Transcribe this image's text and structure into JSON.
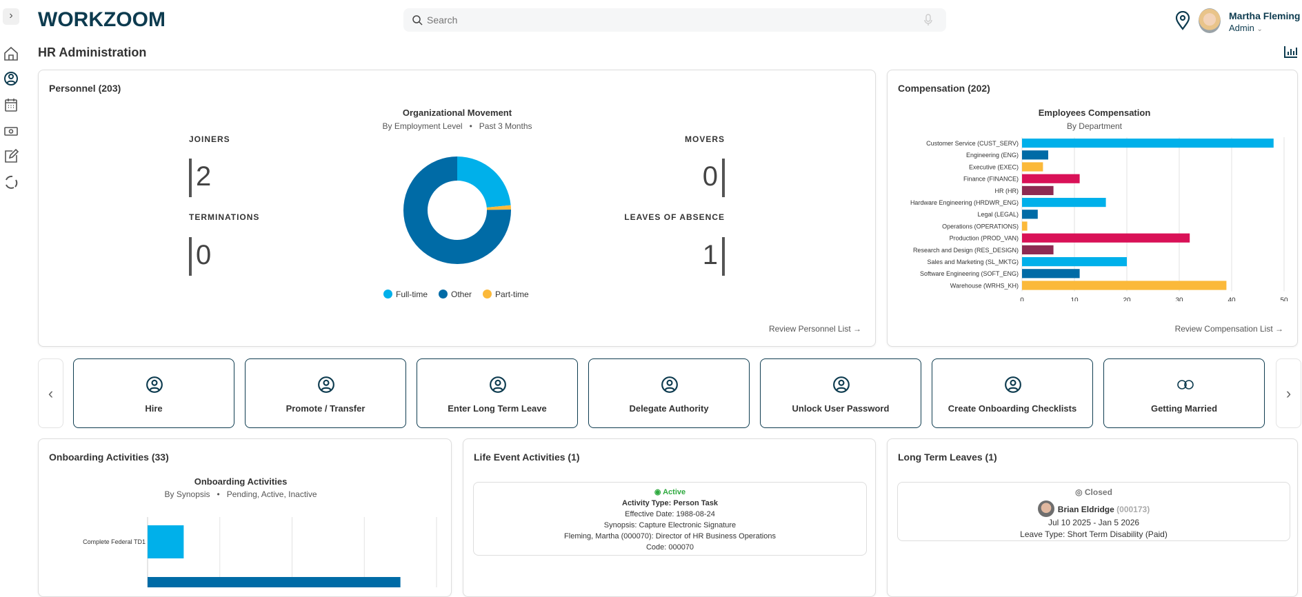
{
  "app": {
    "logo": "WORKZOOM",
    "search_placeholder": "Search",
    "user_name": "Martha Fleming",
    "user_role": "Admin"
  },
  "page_title": "HR Administration",
  "colors": {
    "navy": "#0d3b4f",
    "cyan": "#00b0ea",
    "blue": "#006ba6",
    "yellow": "#fbb93a",
    "pink": "#d91157",
    "maroon": "#8e2a52",
    "active_green": "#2eaa3f"
  },
  "sidebar": {
    "items": [
      {
        "icon": "home-icon"
      },
      {
        "icon": "person-circle-icon"
      },
      {
        "icon": "calendar-icon"
      },
      {
        "icon": "money-icon"
      },
      {
        "icon": "edit-icon"
      },
      {
        "icon": "workzoom-swirl-icon"
      }
    ]
  },
  "personnel": {
    "title": "Personnel (203)",
    "joiners_label": "JOINERS",
    "joiners": "2",
    "terminations_label": "TERMINATIONS",
    "terminations": "0",
    "movers_label": "MOVERS",
    "movers": "0",
    "leaves_label": "LEAVES OF ABSENCE",
    "leaves": "1",
    "link": "Review Personnel List →"
  },
  "compensation": {
    "title": "Compensation (202)",
    "link": "Review Compensation List →"
  },
  "chart_data": [
    {
      "type": "pie",
      "title": "Organizational Movement",
      "subtitle_left": "By Employment Level",
      "subtitle_right": "Past 3 Months",
      "donut": true,
      "legend": "bottom",
      "slices": [
        {
          "name": "Full-time",
          "value": 23.5,
          "color": "#00b0ea"
        },
        {
          "name": "Part-time",
          "value": 1.3,
          "color": "#fbb93a"
        },
        {
          "name": "Other",
          "value": 75.2,
          "color": "#006ba6"
        }
      ]
    },
    {
      "type": "bar",
      "orientation": "horizontal",
      "title": "Employees Compensation",
      "subtitle": "By Department",
      "xlim": [
        0,
        50
      ],
      "xticks": [
        "0",
        "10",
        "20",
        "30",
        "40",
        "50"
      ],
      "grid": true,
      "categories": [
        "Customer Service (CUST_SERV)",
        "Engineering (ENG)",
        "Executive (EXEC)",
        "Finance (FINANCE)",
        "HR (HR)",
        "Hardware Engineering (HRDWR_ENG)",
        "Legal (LEGAL)",
        "Operations (OPERATIONS)",
        "Production (PROD_VAN)",
        "Research and Design (RES_DESIGN)",
        "Sales and Marketing (SL_MKTG)",
        "Software Engineering (SOFT_ENG)",
        "Warehouse (WRHS_KH)"
      ],
      "values": [
        48,
        5,
        4,
        11,
        6,
        16,
        3,
        1,
        32,
        6,
        20,
        11,
        39
      ],
      "colors": [
        "#00b0ea",
        "#006ba6",
        "#fbb93a",
        "#d91157",
        "#8e2a52",
        "#00b0ea",
        "#006ba6",
        "#fbb93a",
        "#d91157",
        "#8e2a52",
        "#00b0ea",
        "#006ba6",
        "#fbb93a"
      ]
    },
    {
      "type": "bar",
      "orientation": "horizontal",
      "title": "Onboarding Activities",
      "subtitle_left": "By Synopsis",
      "subtitle_right": "Pending, Active, Inactive",
      "grid": true,
      "xlim": [
        0,
        8
      ],
      "categories": [
        "Complete Federal TD1",
        ""
      ],
      "values": [
        1,
        7
      ],
      "colors": [
        "#00b0ea",
        "#006ba6"
      ]
    }
  ],
  "actions": {
    "tiles": [
      {
        "label": "Hire",
        "icon": "person-circle-icon"
      },
      {
        "label": "Promote / Transfer",
        "icon": "person-circle-icon"
      },
      {
        "label": "Enter Long Term Leave",
        "icon": "person-circle-icon"
      },
      {
        "label": "Delegate Authority",
        "icon": "person-circle-icon"
      },
      {
        "label": "Unlock User Password",
        "icon": "person-circle-icon"
      },
      {
        "label": "Create Onboarding Checklists",
        "icon": "person-circle-icon"
      },
      {
        "label": "Getting Married",
        "icon": "rings-icon"
      }
    ]
  },
  "onboarding": {
    "title": "Onboarding Activities (33)"
  },
  "life_event": {
    "title": "Life Event Activities (1)",
    "status": "Active",
    "activity_type": "Activity Type: Person Task",
    "effective_date": "Effective Date: 1988-08-24",
    "synopsis": "Synopsis: Capture Electronic Signature",
    "person": "Fleming, Martha (000070): Director of HR Business Operations",
    "code": "Code: 000070"
  },
  "long_term": {
    "title": "Long Term Leaves (1)",
    "status": "Closed",
    "name": "Brian Eldridge",
    "id": "(000173)",
    "dates": "Jul 10 2025 - Jan 5 2026",
    "leave_type": "Leave Type: Short Term Disability (Paid)"
  }
}
